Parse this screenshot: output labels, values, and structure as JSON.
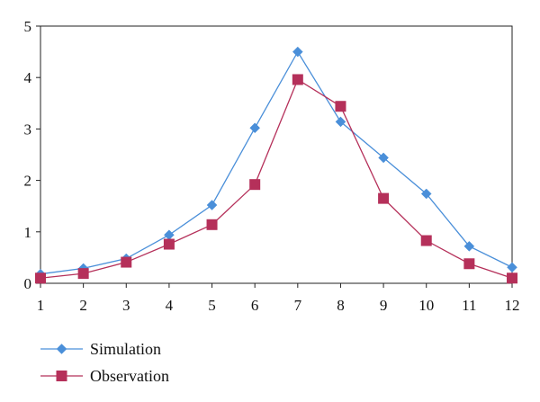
{
  "chart_data": {
    "type": "line",
    "title": "",
    "xlabel": "",
    "ylabel": "",
    "x": [
      1,
      2,
      3,
      4,
      5,
      6,
      7,
      8,
      9,
      10,
      11,
      12
    ],
    "xlim": [
      1,
      12
    ],
    "ylim": [
      0,
      5
    ],
    "y_ticks": [
      0,
      1,
      2,
      3,
      4,
      5
    ],
    "x_ticks": [
      1,
      2,
      3,
      4,
      5,
      6,
      7,
      8,
      9,
      10,
      11,
      12
    ],
    "grid": false,
    "legend_position": "bottom-left",
    "series": [
      {
        "name": "Simulation",
        "color": "#4a8fd9",
        "marker": "diamond",
        "values": [
          0.18,
          0.29,
          0.48,
          0.94,
          1.52,
          3.02,
          4.5,
          3.14,
          2.44,
          1.74,
          0.72,
          0.31
        ]
      },
      {
        "name": "Observation",
        "color": "#b5305a",
        "marker": "square",
        "values": [
          0.1,
          0.19,
          0.41,
          0.76,
          1.14,
          1.92,
          3.96,
          3.44,
          1.65,
          0.83,
          0.38,
          0.1
        ]
      }
    ]
  }
}
